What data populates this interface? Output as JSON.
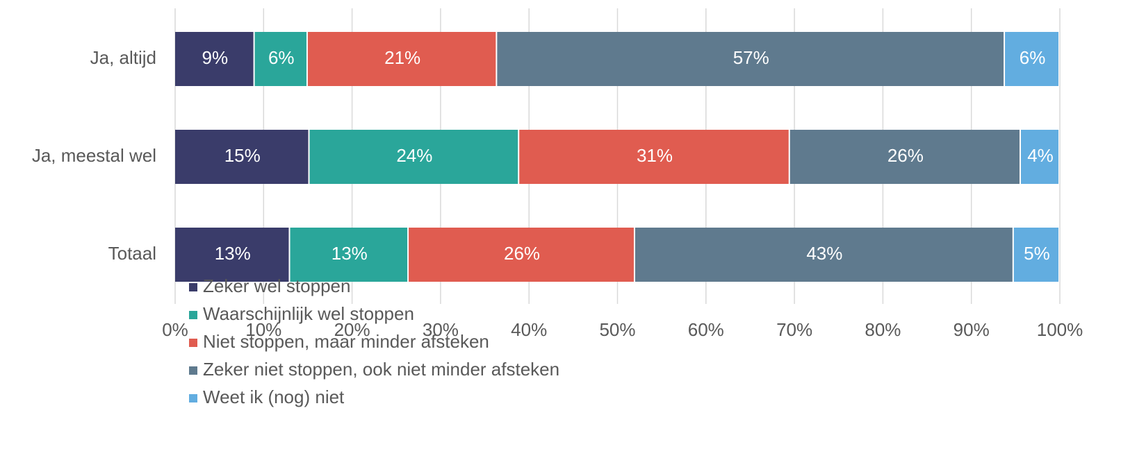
{
  "chart_data": {
    "type": "stacked-barh",
    "categories": [
      "Ja, altijd",
      "Ja, meestal wel",
      "Totaal"
    ],
    "series": [
      {
        "name": "Zeker wel stoppen",
        "color": "#3a3c6a",
        "values": [
          9.0,
          15.2,
          13.0
        ],
        "value_labels": [
          "9%",
          "15%",
          "13%"
        ]
      },
      {
        "name": "Waarschijnlijk wel stoppen",
        "color": "#2aa69a",
        "values": [
          6.0,
          23.7,
          13.4
        ],
        "value_labels": [
          "6%",
          "24%",
          "13%"
        ]
      },
      {
        "name": "Niet stoppen, maar minder afsteken",
        "color": "#e05c50",
        "values": [
          21.4,
          30.6,
          25.6
        ],
        "value_labels": [
          "21%",
          "31%",
          "26%"
        ]
      },
      {
        "name": "Zeker niet stoppen, ook niet minder afsteken",
        "color": "#5f7a8e",
        "values": [
          57.4,
          26.1,
          42.8
        ],
        "value_labels": [
          "57%",
          "26%",
          "43%"
        ]
      },
      {
        "name": "Weet ik (nog) niet",
        "color": "#62ade0",
        "values": [
          6.2,
          4.4,
          5.2
        ],
        "value_labels": [
          "6%",
          "4%",
          "5%"
        ]
      }
    ],
    "xlim": [
      0,
      100
    ],
    "xticks": [
      {
        "value": 0,
        "label": "0%"
      },
      {
        "value": 10,
        "label": "10%"
      },
      {
        "value": 20,
        "label": "20%"
      },
      {
        "value": 30,
        "label": "30%"
      },
      {
        "value": 40,
        "label": "40%"
      },
      {
        "value": 50,
        "label": "50%"
      },
      {
        "value": 60,
        "label": "60%"
      },
      {
        "value": 70,
        "label": "70%"
      },
      {
        "value": 80,
        "label": "80%"
      },
      {
        "value": 90,
        "label": "90%"
      },
      {
        "value": 100,
        "label": "100%"
      }
    ],
    "grid": true
  }
}
